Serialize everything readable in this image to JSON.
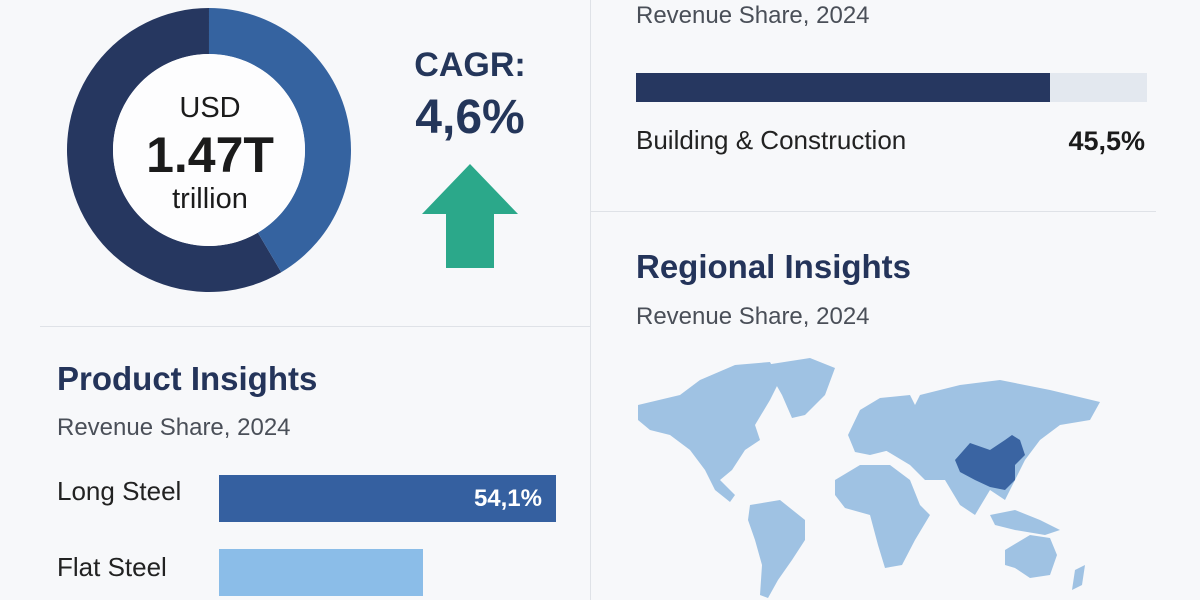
{
  "market_size": {
    "currency": "USD",
    "value": "1.47T",
    "unit": "trillion",
    "donut_share_pct": 41.5,
    "colors": {
      "primary": "#263760",
      "secondary": "#3563a0"
    }
  },
  "cagr": {
    "label": "CAGR:",
    "value": "4,6%",
    "arrow_icon": "arrow-up-icon",
    "arrow_color": "#2ba88a"
  },
  "application_insights": {
    "subtitle": "Revenue Share, 2024",
    "category": "Building & Construction",
    "value": "45,5%",
    "fill_pct": 81,
    "colors": {
      "fill": "#263760",
      "track": "#e3e8ef"
    }
  },
  "product_insights": {
    "title": "Product Insights",
    "subtitle": "Revenue Share, 2024",
    "items": [
      {
        "label": "Long Steel",
        "value": "54,1%",
        "share": 54.1,
        "color": "#3560a0"
      },
      {
        "label": "Flat Steel",
        "value": "",
        "share": 32.7,
        "color": "#8bbde8"
      }
    ]
  },
  "regional_insights": {
    "title": "Regional Insights",
    "subtitle": "Revenue Share, 2024",
    "highlight_region": "China",
    "colors": {
      "land": "#9fc2e3",
      "highlight": "#3a64a2"
    }
  },
  "chart_data": [
    {
      "type": "pie",
      "title": "",
      "values": [
        58.5,
        41.5
      ],
      "center_label": "USD 1.47T trillion"
    },
    {
      "type": "bar",
      "title": "Product Insights",
      "subtitle": "Revenue Share, 2024",
      "categories": [
        "Long Steel",
        "Flat Steel"
      ],
      "values": [
        54.1,
        32.7
      ],
      "data_labels": [
        "54,1%",
        ""
      ]
    },
    {
      "type": "bar",
      "subtitle": "Revenue Share, 2024",
      "categories": [
        "Building & Construction"
      ],
      "values": [
        45.5
      ],
      "data_labels": [
        "45,5%"
      ]
    }
  ]
}
